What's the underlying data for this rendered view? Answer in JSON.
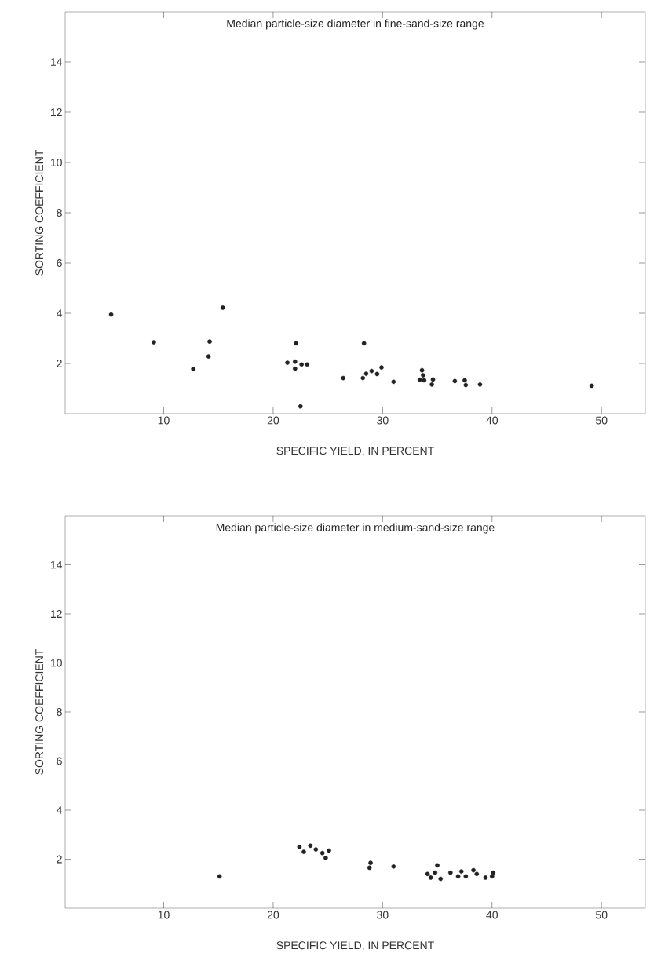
{
  "chart_data": [
    {
      "type": "scatter",
      "title": "Median particle-size diameter in fine-sand-size range",
      "xlabel": "SPECIFIC YIELD, IN PERCENT",
      "ylabel": "SORTING   COEFFICIENT",
      "color": "#222222",
      "marker": "circle",
      "xlim": [
        1,
        54
      ],
      "ylim": [
        0,
        16
      ],
      "xticks": [
        10,
        20,
        30,
        40,
        50
      ],
      "yticks": [
        2,
        4,
        6,
        8,
        10,
        12,
        14
      ],
      "x": [
        5.2,
        9.1,
        12.7,
        14.1,
        14.2,
        15.4,
        21.3,
        22.0,
        22.0,
        22.1,
        22.5,
        22.6,
        23.1,
        26.4,
        28.2,
        28.3,
        28.5,
        29.0,
        29.5,
        29.9,
        31.0,
        33.4,
        33.6,
        33.7,
        33.8,
        34.5,
        34.6,
        36.6,
        37.5,
        37.6,
        38.9,
        49.1
      ],
      "values": [
        3.95,
        2.84,
        1.78,
        2.28,
        2.87,
        4.22,
        2.03,
        2.07,
        1.79,
        2.8,
        0.29,
        1.96,
        1.96,
        1.42,
        1.42,
        2.8,
        1.59,
        1.7,
        1.58,
        1.84,
        1.27,
        1.35,
        1.73,
        1.53,
        1.33,
        1.16,
        1.36,
        1.3,
        1.33,
        1.14,
        1.16,
        1.11
      ]
    },
    {
      "type": "scatter",
      "title": "Median particle-size diameter in medium-sand-size range",
      "xlabel": "SPECIFIC YIELD, IN PERCENT",
      "ylabel": "SORTING   COEFFICIENT",
      "color": "#222222",
      "marker": "circle",
      "xlim": [
        1,
        54
      ],
      "ylim": [
        0,
        16
      ],
      "xticks": [
        10,
        20,
        30,
        40,
        50
      ],
      "yticks": [
        2,
        4,
        6,
        8,
        10,
        12,
        14
      ],
      "x": [
        15.1,
        22.4,
        22.8,
        23.4,
        23.9,
        24.5,
        24.8,
        25.1,
        28.8,
        28.9,
        31.0,
        34.1,
        34.4,
        34.8,
        35.0,
        35.3,
        36.2,
        36.9,
        37.2,
        37.6,
        38.3,
        38.6,
        39.4,
        40.0,
        40.1
      ],
      "values": [
        1.3,
        2.5,
        2.3,
        2.55,
        2.4,
        2.25,
        2.05,
        2.35,
        1.65,
        1.85,
        1.7,
        1.4,
        1.25,
        1.45,
        1.75,
        1.2,
        1.45,
        1.3,
        1.5,
        1.3,
        1.55,
        1.4,
        1.25,
        1.3,
        1.45
      ]
    }
  ]
}
